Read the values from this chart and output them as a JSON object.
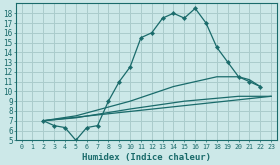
{
  "xlabel": "Humidex (Indice chaleur)",
  "bg_color": "#cce8e8",
  "grid_color": "#aacccc",
  "line_color": "#1a6b6b",
  "xlim": [
    -0.5,
    23.5
  ],
  "ylim": [
    5,
    19
  ],
  "yticks": [
    5,
    6,
    7,
    8,
    9,
    10,
    11,
    12,
    13,
    14,
    15,
    16,
    17,
    18
  ],
  "xticks": [
    0,
    1,
    2,
    3,
    4,
    5,
    6,
    7,
    8,
    9,
    10,
    11,
    12,
    13,
    14,
    15,
    16,
    17,
    18,
    19,
    20,
    21,
    22,
    23
  ],
  "line1_x": [
    2,
    3,
    4,
    5,
    6,
    7,
    8,
    9,
    10,
    11,
    12,
    13,
    14,
    15,
    16,
    17,
    18,
    19,
    20,
    21,
    22
  ],
  "line1_y": [
    7,
    6.5,
    6.3,
    5.0,
    6.3,
    6.5,
    9.0,
    11.0,
    12.5,
    15.5,
    16.0,
    17.5,
    18.0,
    17.5,
    18.5,
    17.0,
    14.5,
    13.0,
    11.5,
    11.0,
    10.5
  ],
  "line2_x": [
    2,
    23
  ],
  "line2_y": [
    7,
    9.5
  ],
  "line3_x": [
    2,
    5,
    10,
    14,
    18,
    20,
    21,
    22
  ],
  "line3_y": [
    7,
    7.5,
    9.0,
    10.5,
    11.5,
    11.5,
    11.2,
    10.5
  ],
  "line4_x": [
    2,
    5,
    10,
    15,
    20,
    23
  ],
  "line4_y": [
    7,
    7.3,
    8.2,
    9.0,
    9.5,
    9.5
  ]
}
